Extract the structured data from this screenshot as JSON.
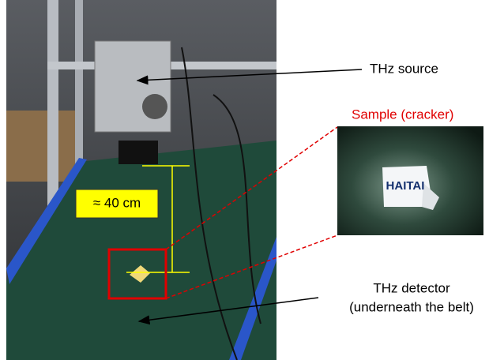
{
  "annotations": {
    "source": "THz source",
    "sample": "Sample (cracker)",
    "distance": "≈ 40 cm",
    "detector_line1": "THz detector",
    "detector_line2": "(underneath the belt)"
  },
  "inset": {
    "brand": "HAITAI"
  }
}
